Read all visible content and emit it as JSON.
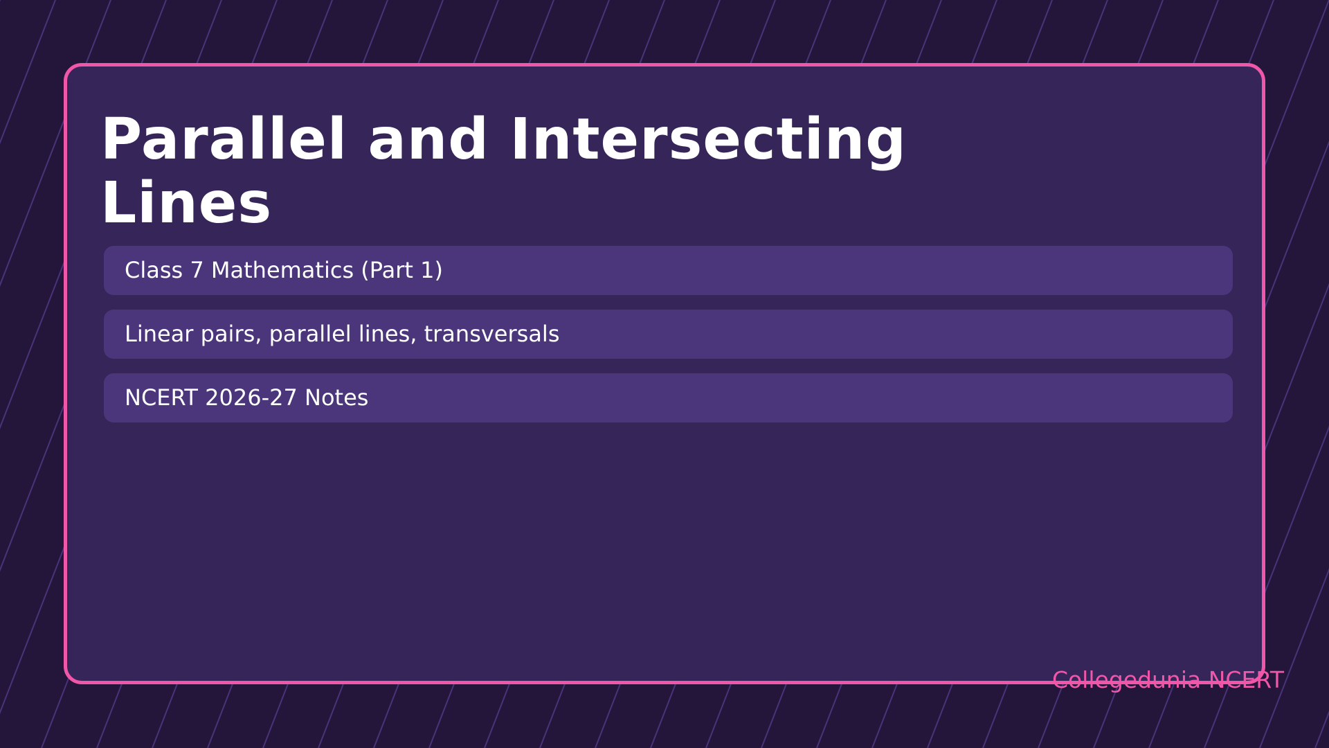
{
  "slide": {
    "title": "Parallel and Intersecting Lines",
    "items": [
      "Class 7 Mathematics (Part 1)",
      "Linear pairs, parallel lines, transversals",
      "NCERT 2026-27 Notes"
    ],
    "footer": "Collegedunia NCERT"
  },
  "colors": {
    "background": "#23163a",
    "card": "#362558",
    "card_border": "#f057a8",
    "pill": "#4b367c",
    "stripe": "#4a3379",
    "accent_text": "#f057a8",
    "text": "#ffffff"
  }
}
